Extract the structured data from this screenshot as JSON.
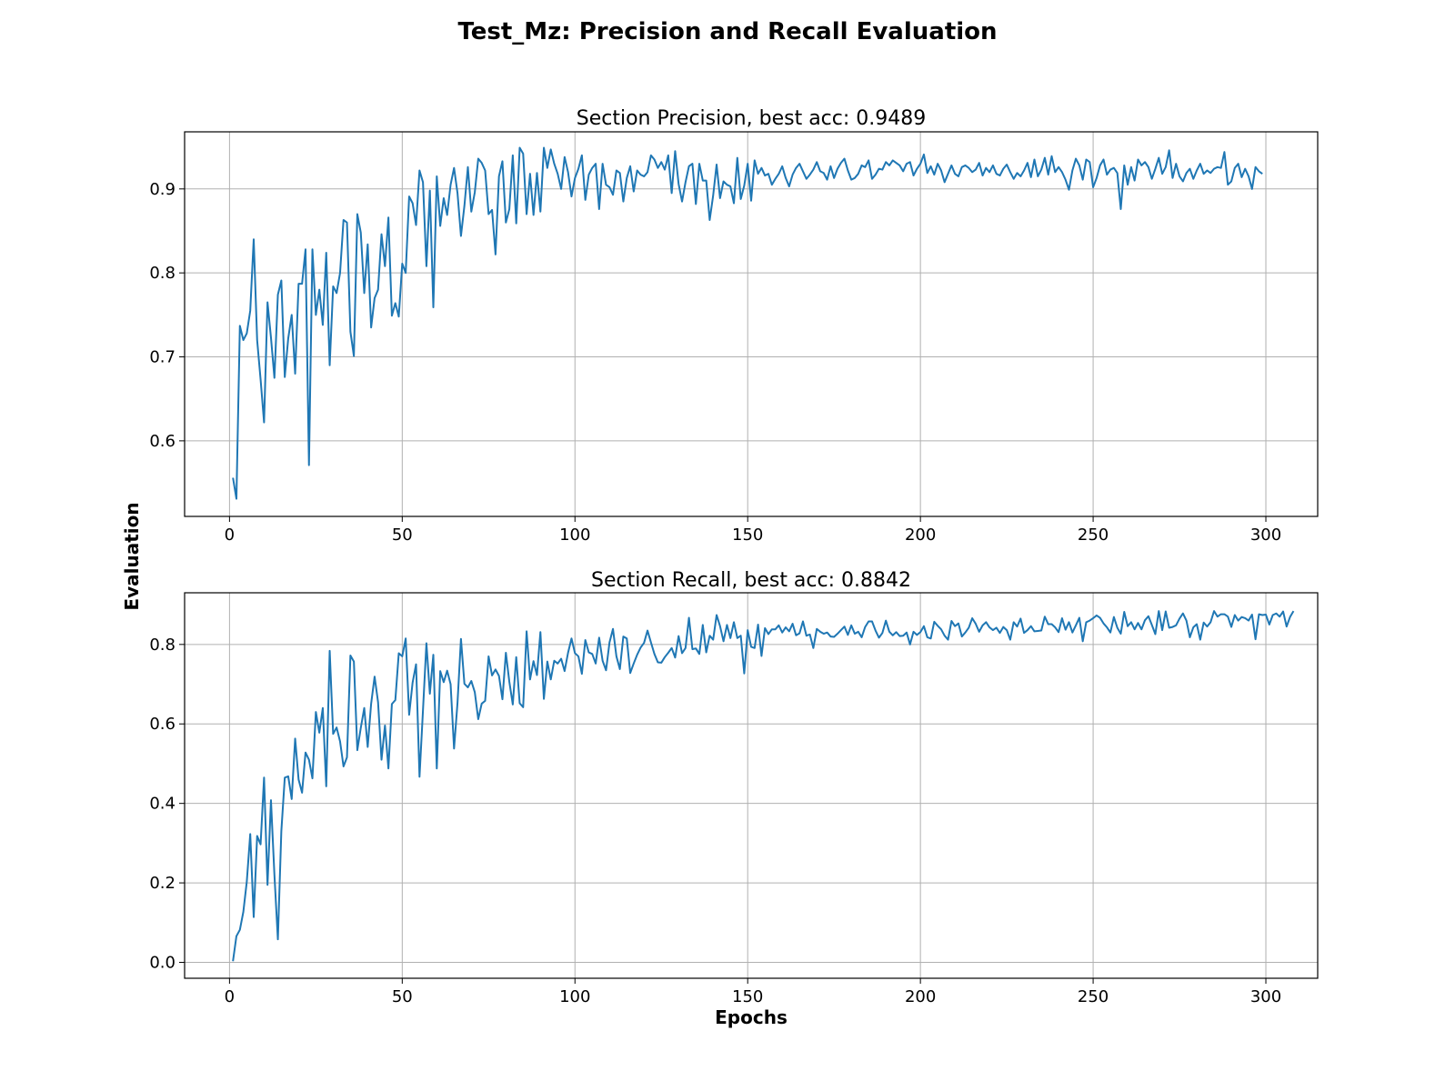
{
  "figure": {
    "suptitle": "Test_Mz:  Precision and Recall Evaluation",
    "ylabel": "Evaluation",
    "xlabel": "Epochs",
    "line_color": "#1f77b4",
    "grid_color": "#b0b0b0"
  },
  "chart_data": [
    {
      "type": "line",
      "title": "Section Precision, best acc: 0.9489",
      "xlim": [
        -13,
        315
      ],
      "ylim": [
        0.51,
        0.968
      ],
      "grid": true,
      "x_ticks": [
        0,
        50,
        100,
        150,
        200,
        250,
        300
      ],
      "y_ticks": [
        0.6,
        0.7,
        0.8,
        0.9
      ],
      "x_tick_labels": [
        "0",
        "50",
        "100",
        "150",
        "200",
        "250",
        "300"
      ],
      "y_tick_labels": [
        "0.6",
        "0.7",
        "0.8",
        "0.9"
      ],
      "x_start": 1,
      "x_step": 1,
      "values": [
        0.556,
        0.531,
        0.737,
        0.72,
        0.728,
        0.755,
        0.84,
        0.72,
        0.673,
        0.622,
        0.765,
        0.723,
        0.675,
        0.774,
        0.791,
        0.676,
        0.722,
        0.75,
        0.68,
        0.787,
        0.787,
        0.828,
        0.571,
        0.828,
        0.75,
        0.78,
        0.738,
        0.824,
        0.69,
        0.784,
        0.776,
        0.8,
        0.863,
        0.86,
        0.73,
        0.701,
        0.87,
        0.848,
        0.776,
        0.834,
        0.735,
        0.77,
        0.78,
        0.846,
        0.808,
        0.866,
        0.749,
        0.764,
        0.748,
        0.811,
        0.8,
        0.891,
        0.883,
        0.857,
        0.922,
        0.908,
        0.808,
        0.898,
        0.759,
        0.915,
        0.856,
        0.889,
        0.869,
        0.905,
        0.925,
        0.895,
        0.844,
        0.88,
        0.926,
        0.873,
        0.896,
        0.936,
        0.931,
        0.922,
        0.87,
        0.875,
        0.822,
        0.915,
        0.933,
        0.86,
        0.876,
        0.94,
        0.859,
        0.949,
        0.942,
        0.87,
        0.918,
        0.869,
        0.919,
        0.873,
        0.949,
        0.925,
        0.947,
        0.93,
        0.918,
        0.9,
        0.938,
        0.92,
        0.891,
        0.913,
        0.924,
        0.94,
        0.887,
        0.917,
        0.925,
        0.93,
        0.876,
        0.93,
        0.905,
        0.902,
        0.893,
        0.922,
        0.919,
        0.885,
        0.913,
        0.927,
        0.897,
        0.922,
        0.917,
        0.915,
        0.92,
        0.94,
        0.935,
        0.925,
        0.932,
        0.923,
        0.94,
        0.895,
        0.945,
        0.906,
        0.885,
        0.908,
        0.927,
        0.93,
        0.882,
        0.93,
        0.91,
        0.91,
        0.863,
        0.892,
        0.929,
        0.889,
        0.909,
        0.905,
        0.903,
        0.883,
        0.937,
        0.888,
        0.904,
        0.93,
        0.886,
        0.934,
        0.918,
        0.925,
        0.916,
        0.918,
        0.905,
        0.912,
        0.918,
        0.927,
        0.913,
        0.903,
        0.917,
        0.925,
        0.93,
        0.921,
        0.912,
        0.917,
        0.923,
        0.932,
        0.921,
        0.919,
        0.911,
        0.927,
        0.913,
        0.924,
        0.931,
        0.936,
        0.922,
        0.911,
        0.913,
        0.918,
        0.928,
        0.926,
        0.934,
        0.912,
        0.917,
        0.924,
        0.923,
        0.932,
        0.928,
        0.934,
        0.931,
        0.928,
        0.921,
        0.93,
        0.932,
        0.916,
        0.924,
        0.93,
        0.941,
        0.919,
        0.927,
        0.917,
        0.93,
        0.922,
        0.908,
        0.918,
        0.928,
        0.918,
        0.915,
        0.926,
        0.928,
        0.925,
        0.92,
        0.923,
        0.931,
        0.916,
        0.925,
        0.92,
        0.928,
        0.918,
        0.916,
        0.924,
        0.929,
        0.92,
        0.912,
        0.919,
        0.915,
        0.922,
        0.931,
        0.914,
        0.935,
        0.915,
        0.923,
        0.937,
        0.917,
        0.939,
        0.92,
        0.926,
        0.92,
        0.911,
        0.899,
        0.922,
        0.936,
        0.928,
        0.911,
        0.935,
        0.932,
        0.902,
        0.913,
        0.928,
        0.935,
        0.917,
        0.923,
        0.925,
        0.919,
        0.876,
        0.928,
        0.905,
        0.926,
        0.91,
        0.935,
        0.928,
        0.932,
        0.926,
        0.912,
        0.924,
        0.937,
        0.918,
        0.926,
        0.946,
        0.913,
        0.93,
        0.915,
        0.909,
        0.919,
        0.924,
        0.912,
        0.922,
        0.93,
        0.918,
        0.922,
        0.919,
        0.924,
        0.926,
        0.925,
        0.944,
        0.905,
        0.909,
        0.925,
        0.93,
        0.914,
        0.924,
        0.915,
        0.9,
        0.926,
        0.921,
        0.918
      ]
    },
    {
      "type": "line",
      "title": "Section Recall, best acc: 0.8842",
      "xlim": [
        -13,
        315
      ],
      "ylim": [
        -0.04,
        0.93
      ],
      "grid": true,
      "x_ticks": [
        0,
        50,
        100,
        150,
        200,
        250,
        300
      ],
      "y_ticks": [
        0.0,
        0.2,
        0.4,
        0.6,
        0.8
      ],
      "x_tick_labels": [
        "0",
        "50",
        "100",
        "150",
        "200",
        "250",
        "300"
      ],
      "y_tick_labels": [
        "0.0",
        "0.2",
        "0.4",
        "0.6",
        "0.8"
      ],
      "x_start": 1,
      "x_step": 1,
      "values": [
        0.003,
        0.066,
        0.082,
        0.127,
        0.203,
        0.323,
        0.114,
        0.318,
        0.297,
        0.465,
        0.195,
        0.408,
        0.22,
        0.058,
        0.33,
        0.465,
        0.468,
        0.411,
        0.563,
        0.46,
        0.427,
        0.528,
        0.51,
        0.463,
        0.63,
        0.578,
        0.64,
        0.443,
        0.784,
        0.575,
        0.591,
        0.556,
        0.493,
        0.516,
        0.772,
        0.757,
        0.534,
        0.59,
        0.64,
        0.542,
        0.651,
        0.719,
        0.655,
        0.51,
        0.596,
        0.488,
        0.65,
        0.66,
        0.778,
        0.77,
        0.815,
        0.623,
        0.704,
        0.75,
        0.467,
        0.634,
        0.803,
        0.676,
        0.774,
        0.488,
        0.733,
        0.705,
        0.734,
        0.7,
        0.538,
        0.653,
        0.814,
        0.701,
        0.692,
        0.708,
        0.68,
        0.612,
        0.651,
        0.658,
        0.77,
        0.722,
        0.737,
        0.721,
        0.662,
        0.779,
        0.706,
        0.649,
        0.768,
        0.652,
        0.642,
        0.833,
        0.712,
        0.758,
        0.723,
        0.831,
        0.663,
        0.757,
        0.712,
        0.759,
        0.752,
        0.764,
        0.733,
        0.779,
        0.815,
        0.778,
        0.77,
        0.726,
        0.811,
        0.78,
        0.776,
        0.752,
        0.817,
        0.759,
        0.735,
        0.805,
        0.839,
        0.77,
        0.738,
        0.82,
        0.815,
        0.728,
        0.752,
        0.774,
        0.792,
        0.804,
        0.835,
        0.805,
        0.776,
        0.755,
        0.754,
        0.768,
        0.779,
        0.791,
        0.767,
        0.821,
        0.778,
        0.791,
        0.867,
        0.788,
        0.79,
        0.776,
        0.849,
        0.78,
        0.822,
        0.812,
        0.874,
        0.846,
        0.808,
        0.849,
        0.816,
        0.856,
        0.816,
        0.822,
        0.727,
        0.836,
        0.794,
        0.791,
        0.85,
        0.771,
        0.841,
        0.826,
        0.838,
        0.838,
        0.848,
        0.83,
        0.843,
        0.833,
        0.852,
        0.823,
        0.828,
        0.858,
        0.822,
        0.825,
        0.791,
        0.839,
        0.832,
        0.827,
        0.83,
        0.82,
        0.819,
        0.827,
        0.836,
        0.845,
        0.824,
        0.848,
        0.827,
        0.832,
        0.818,
        0.844,
        0.858,
        0.858,
        0.835,
        0.817,
        0.829,
        0.86,
        0.832,
        0.823,
        0.831,
        0.821,
        0.822,
        0.83,
        0.8,
        0.832,
        0.824,
        0.831,
        0.846,
        0.818,
        0.815,
        0.857,
        0.847,
        0.838,
        0.822,
        0.812,
        0.859,
        0.846,
        0.853,
        0.82,
        0.83,
        0.842,
        0.866,
        0.852,
        0.832,
        0.848,
        0.856,
        0.843,
        0.836,
        0.842,
        0.829,
        0.844,
        0.836,
        0.812,
        0.856,
        0.845,
        0.865,
        0.829,
        0.836,
        0.846,
        0.833,
        0.834,
        0.835,
        0.87,
        0.851,
        0.851,
        0.843,
        0.831,
        0.866,
        0.837,
        0.856,
        0.83,
        0.848,
        0.867,
        0.808,
        0.856,
        0.86,
        0.866,
        0.873,
        0.867,
        0.853,
        0.843,
        0.83,
        0.869,
        0.842,
        0.827,
        0.882,
        0.846,
        0.856,
        0.838,
        0.854,
        0.838,
        0.861,
        0.871,
        0.849,
        0.826,
        0.884,
        0.836,
        0.883,
        0.842,
        0.844,
        0.848,
        0.865,
        0.878,
        0.86,
        0.818,
        0.843,
        0.851,
        0.812,
        0.855,
        0.845,
        0.856,
        0.884,
        0.87,
        0.876,
        0.876,
        0.87,
        0.844,
        0.874,
        0.86,
        0.869,
        0.866,
        0.86,
        0.875,
        0.813,
        0.876,
        0.874,
        0.875,
        0.85,
        0.874,
        0.878,
        0.87,
        0.883,
        0.845,
        0.869,
        0.884
      ]
    }
  ]
}
